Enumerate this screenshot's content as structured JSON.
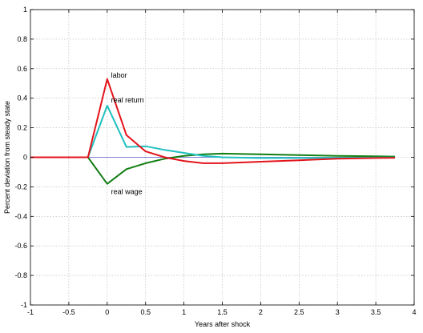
{
  "chart_data": {
    "type": "line",
    "xlabel": "Years after shock",
    "ylabel": "Percent deviation from steady state",
    "xlim": [
      -1,
      4
    ],
    "ylim": [
      -1,
      1
    ],
    "xticks": [
      "-1",
      "-0.5",
      "0",
      "0.5",
      "1",
      "1.5",
      "2",
      "2.5",
      "3",
      "3.5",
      "4"
    ],
    "yticks": [
      "1",
      "0.8",
      "0.6",
      "0.4",
      "0.2",
      "0",
      "-0.2",
      "-0.4",
      "-0.6",
      "-0.8",
      "-1"
    ],
    "grid": true,
    "series": [
      {
        "name": "labor",
        "color": "#e4141b",
        "x": [
          -1,
          -0.25,
          0,
          0.25,
          0.5,
          0.75,
          1,
          1.25,
          1.5,
          2,
          2.5,
          3,
          3.5,
          3.75
        ],
        "y": [
          0,
          0,
          0.53,
          0.15,
          0.04,
          0.0,
          -0.025,
          -0.04,
          -0.04,
          -0.03,
          -0.02,
          -0.01,
          -0.005,
          -0.003
        ]
      },
      {
        "name": "real return",
        "color": "#21c0c0",
        "x": [
          -1,
          -0.25,
          0,
          0.25,
          0.5,
          0.75,
          1,
          1.25,
          1.5,
          2,
          2.5,
          3,
          3.5,
          3.75
        ],
        "y": [
          0,
          0,
          0.35,
          0.07,
          0.075,
          0.05,
          0.03,
          0.01,
          0.0,
          -0.005,
          -0.005,
          -0.003,
          -0.002,
          -0.001
        ]
      },
      {
        "name": "real wage",
        "color": "#127e12",
        "x": [
          -1,
          -0.25,
          0,
          0.25,
          0.5,
          0.75,
          1,
          1.25,
          1.5,
          2,
          2.5,
          3,
          3.5,
          3.75
        ],
        "y": [
          0,
          0,
          -0.18,
          -0.08,
          -0.04,
          -0.01,
          0.01,
          0.02,
          0.025,
          0.02,
          0.015,
          0.01,
          0.007,
          0.005
        ]
      },
      {
        "name": "",
        "color": "#7f7fd8",
        "x": [
          -1,
          3.75
        ],
        "y": [
          0,
          0
        ]
      }
    ],
    "annotations": [
      {
        "text": "labor",
        "x": 0.05,
        "y": 0.54
      },
      {
        "text": "real return",
        "x": 0.05,
        "y": 0.37
      },
      {
        "text": "real wage",
        "x": 0.05,
        "y": -0.25
      }
    ]
  }
}
